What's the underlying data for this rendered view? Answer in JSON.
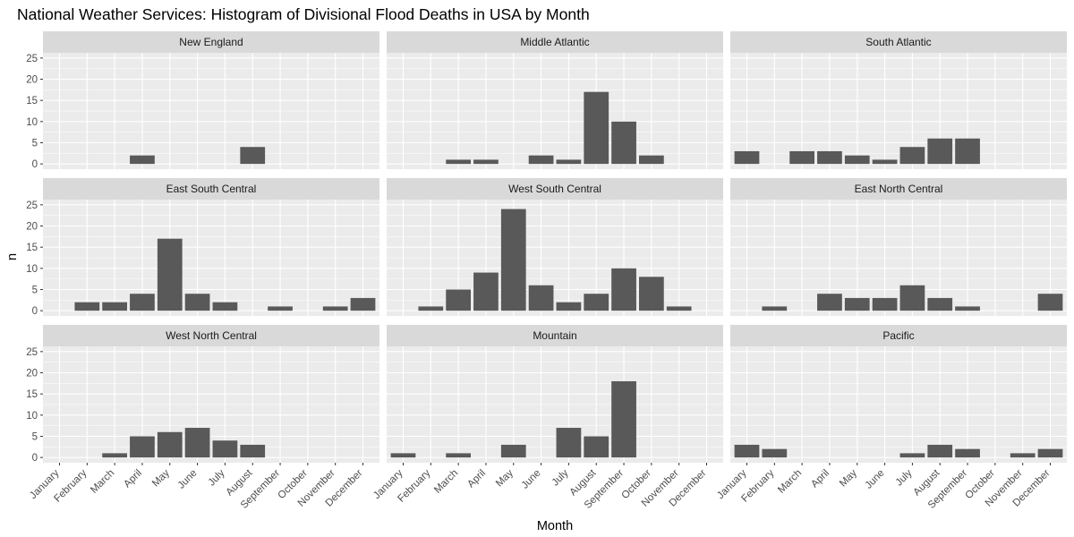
{
  "chart_data": {
    "type": "bar",
    "title": "National Weather Services: Histogram of Divisional Flood Deaths in USA by Month",
    "xlabel": "Month",
    "ylabel": "n",
    "ylim": [
      0,
      25
    ],
    "y_ticks": [
      0,
      5,
      10,
      15,
      20,
      25
    ],
    "categories": [
      "January",
      "February",
      "March",
      "April",
      "May",
      "June",
      "July",
      "August",
      "September",
      "October",
      "November",
      "December"
    ],
    "facet_layout": "3x3 grid",
    "colors": {
      "bar": "#595959",
      "panel": "#ebebeb",
      "strip": "#d9d9d9",
      "grid": "#ffffff"
    },
    "panels": [
      {
        "name": "New England",
        "values": [
          0,
          0,
          0,
          2,
          0,
          0,
          0,
          4,
          0,
          0,
          0,
          0
        ]
      },
      {
        "name": "Middle Atlantic",
        "values": [
          0,
          0,
          1,
          1,
          0,
          2,
          1,
          17,
          10,
          2,
          0,
          0
        ]
      },
      {
        "name": "South Atlantic",
        "values": [
          3,
          0,
          3,
          3,
          2,
          1,
          4,
          6,
          6,
          0,
          0,
          0
        ]
      },
      {
        "name": "East South Central",
        "values": [
          0,
          2,
          2,
          4,
          17,
          4,
          2,
          0,
          1,
          0,
          1,
          3
        ]
      },
      {
        "name": "West South Central",
        "values": [
          0,
          1,
          5,
          9,
          24,
          6,
          2,
          4,
          10,
          8,
          1,
          0
        ]
      },
      {
        "name": "East North Central",
        "values": [
          0,
          1,
          0,
          4,
          3,
          3,
          6,
          3,
          1,
          0,
          0,
          4
        ]
      },
      {
        "name": "West North Central",
        "values": [
          0,
          0,
          1,
          5,
          6,
          7,
          4,
          3,
          0,
          0,
          0,
          0
        ]
      },
      {
        "name": "Mountain",
        "values": [
          1,
          0,
          1,
          0,
          3,
          0,
          7,
          5,
          18,
          0,
          0,
          0
        ]
      },
      {
        "name": "Pacific",
        "values": [
          3,
          2,
          0,
          0,
          0,
          0,
          1,
          3,
          2,
          0,
          1,
          2
        ]
      }
    ]
  }
}
